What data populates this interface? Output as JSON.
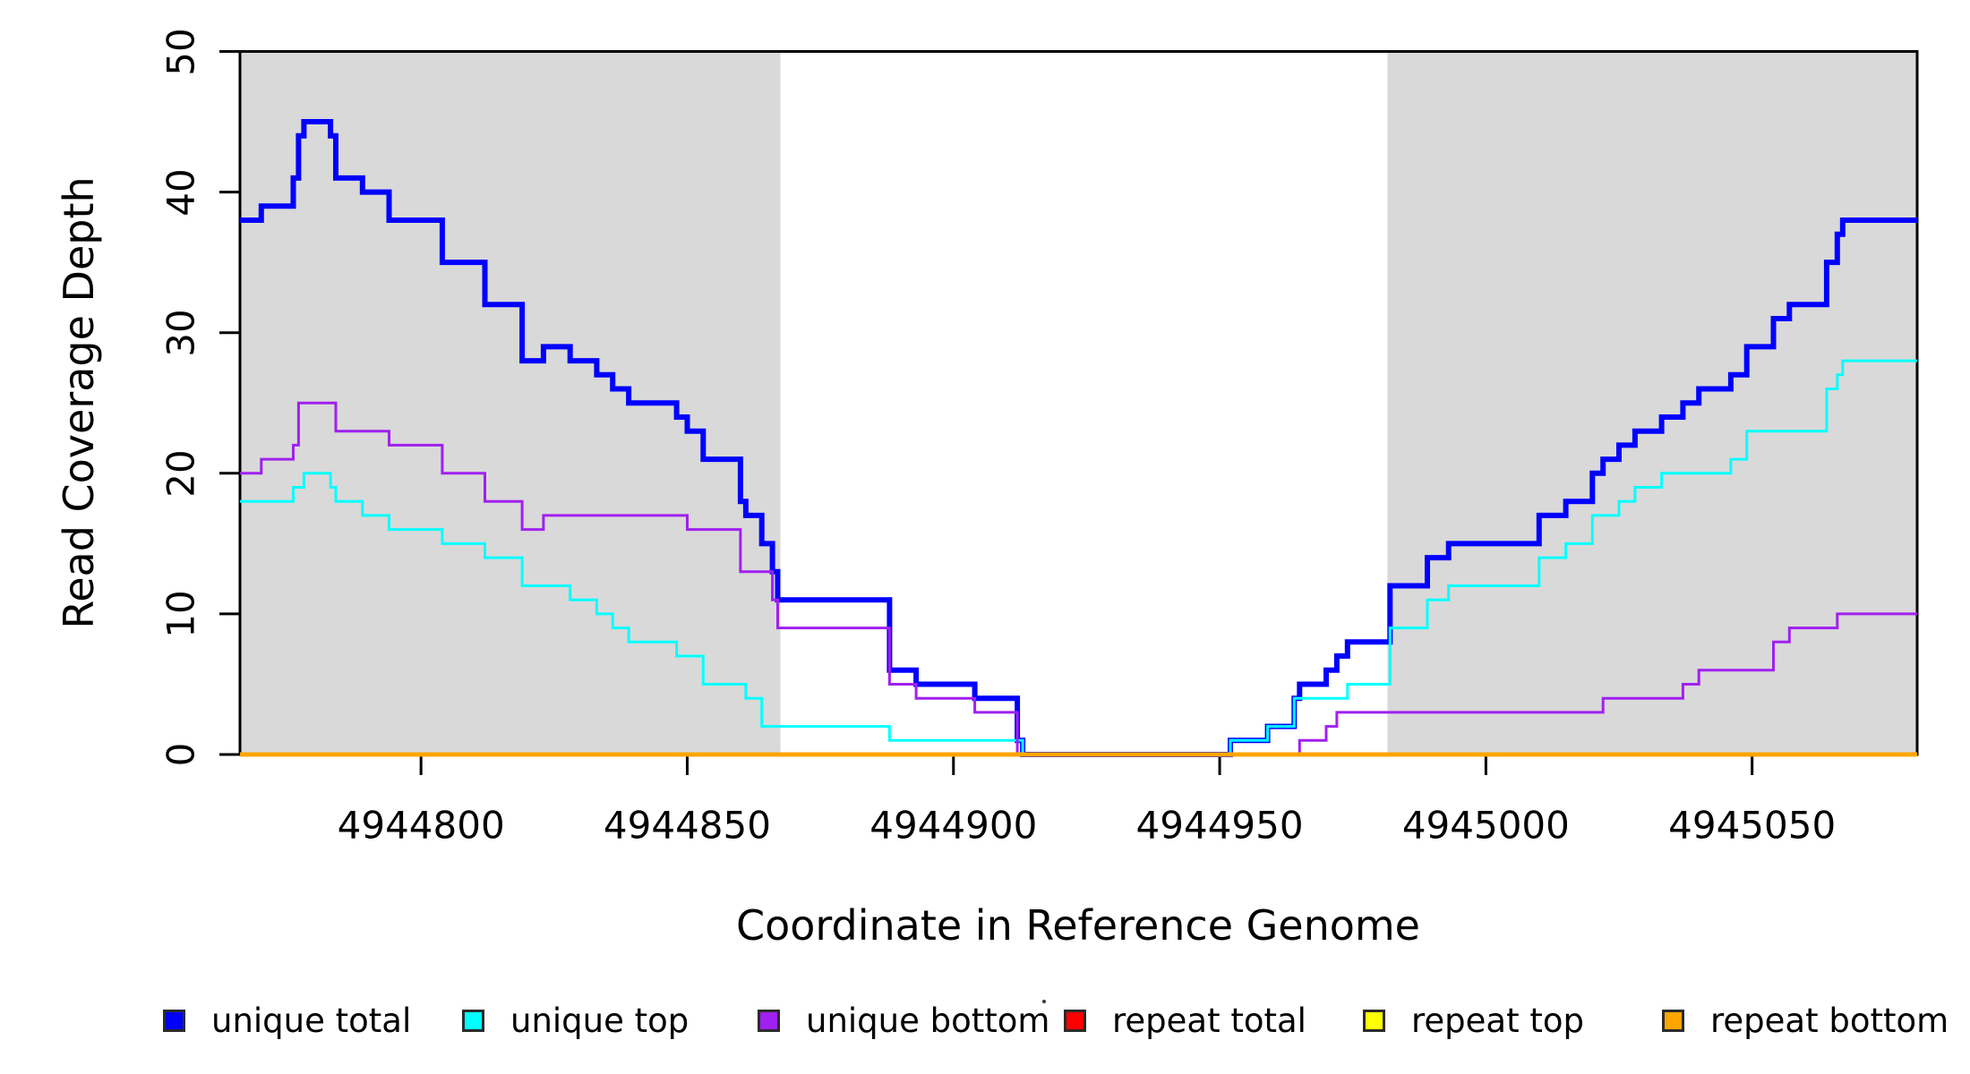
{
  "chart_data": {
    "type": "line",
    "subtype": "step",
    "title": "",
    "xlabel": "Coordinate in Reference Genome",
    "ylabel": "Read Coverage Depth",
    "xlim": [
      4944766,
      4945081
    ],
    "ylim": [
      0,
      50
    ],
    "x_ticks": [
      4944800,
      4944850,
      4944900,
      4944950,
      4945000,
      4945050
    ],
    "y_ticks": [
      0,
      10,
      20,
      30,
      40,
      50
    ],
    "grid": false,
    "background_color": "#ffffff",
    "shaded_regions": [
      {
        "name": "left-gray-region",
        "from": 4944766,
        "to": 4944867.5,
        "color": "#D9D9D9"
      },
      {
        "name": "right-gray-region",
        "from": 4944981.5,
        "to": 4945081,
        "color": "#D9D9D9"
      }
    ],
    "legend_position": "bottom",
    "stray_mark": ".",
    "series": [
      {
        "name": "unique total",
        "color": "#0000FF",
        "line_width": 6,
        "steps": [
          [
            4944766,
            38
          ],
          [
            4944770,
            39
          ],
          [
            4944776,
            41
          ],
          [
            4944777,
            44
          ],
          [
            4944778,
            45
          ],
          [
            4944783,
            44
          ],
          [
            4944784,
            41
          ],
          [
            4944789,
            40
          ],
          [
            4944794,
            38
          ],
          [
            4944804,
            35
          ],
          [
            4944812,
            32
          ],
          [
            4944819,
            28
          ],
          [
            4944823,
            29
          ],
          [
            4944828,
            28
          ],
          [
            4944833,
            27
          ],
          [
            4944836,
            26
          ],
          [
            4944839,
            25
          ],
          [
            4944848,
            24
          ],
          [
            4944850,
            23
          ],
          [
            4944853,
            21
          ],
          [
            4944860,
            18
          ],
          [
            4944861,
            17
          ],
          [
            4944864,
            15
          ],
          [
            4944866,
            13
          ],
          [
            4944867,
            11
          ],
          [
            4944888,
            6
          ],
          [
            4944893,
            5
          ],
          [
            4944904,
            4
          ],
          [
            4944912,
            1
          ],
          [
            4944913,
            0
          ],
          [
            4944952,
            1
          ],
          [
            4944959,
            2
          ],
          [
            4944964,
            4
          ],
          [
            4944965,
            5
          ],
          [
            4944970,
            6
          ],
          [
            4944972,
            7
          ],
          [
            4944974,
            8
          ],
          [
            4944982,
            12
          ],
          [
            4944989,
            14
          ],
          [
            4944993,
            15
          ],
          [
            4945010,
            17
          ],
          [
            4945015,
            18
          ],
          [
            4945020,
            20
          ],
          [
            4945022,
            21
          ],
          [
            4945025,
            22
          ],
          [
            4945028,
            23
          ],
          [
            4945033,
            24
          ],
          [
            4945037,
            25
          ],
          [
            4945040,
            26
          ],
          [
            4945046,
            27
          ],
          [
            4945049,
            29
          ],
          [
            4945054,
            31
          ],
          [
            4945057,
            32
          ],
          [
            4945064,
            35
          ],
          [
            4945066,
            37
          ],
          [
            4945067,
            38
          ]
        ]
      },
      {
        "name": "unique top",
        "color": "#00FFFF",
        "line_width": 3,
        "steps": [
          [
            4944766,
            18
          ],
          [
            4944776,
            19
          ],
          [
            4944778,
            20
          ],
          [
            4944783,
            19
          ],
          [
            4944784,
            18
          ],
          [
            4944789,
            17
          ],
          [
            4944794,
            16
          ],
          [
            4944804,
            15
          ],
          [
            4944812,
            14
          ],
          [
            4944819,
            12
          ],
          [
            4944828,
            11
          ],
          [
            4944833,
            10
          ],
          [
            4944836,
            9
          ],
          [
            4944839,
            8
          ],
          [
            4944848,
            7
          ],
          [
            4944853,
            5
          ],
          [
            4944861,
            4
          ],
          [
            4944864,
            2
          ],
          [
            4944888,
            1
          ],
          [
            4944913,
            0
          ],
          [
            4944952,
            1
          ],
          [
            4944959,
            2
          ],
          [
            4944964,
            4
          ],
          [
            4944974,
            5
          ],
          [
            4944982,
            9
          ],
          [
            4944989,
            11
          ],
          [
            4944993,
            12
          ],
          [
            4945010,
            14
          ],
          [
            4945015,
            15
          ],
          [
            4945020,
            17
          ],
          [
            4945025,
            18
          ],
          [
            4945028,
            19
          ],
          [
            4945033,
            20
          ],
          [
            4945046,
            21
          ],
          [
            4945049,
            23
          ],
          [
            4945064,
            26
          ],
          [
            4945066,
            27
          ],
          [
            4945067,
            28
          ]
        ]
      },
      {
        "name": "unique bottom",
        "color": "#A020F0",
        "line_width": 3,
        "steps": [
          [
            4944766,
            20
          ],
          [
            4944770,
            21
          ],
          [
            4944776,
            22
          ],
          [
            4944777,
            25
          ],
          [
            4944784,
            23
          ],
          [
            4944794,
            22
          ],
          [
            4944804,
            20
          ],
          [
            4944812,
            18
          ],
          [
            4944819,
            16
          ],
          [
            4944823,
            17
          ],
          [
            4944850,
            16
          ],
          [
            4944860,
            13
          ],
          [
            4944866,
            11
          ],
          [
            4944867,
            9
          ],
          [
            4944888,
            5
          ],
          [
            4944893,
            4
          ],
          [
            4944904,
            3
          ],
          [
            4944912,
            0
          ],
          [
            4944965,
            1
          ],
          [
            4944970,
            2
          ],
          [
            4944972,
            3
          ],
          [
            4945022,
            4
          ],
          [
            4945037,
            5
          ],
          [
            4945040,
            6
          ],
          [
            4945054,
            8
          ],
          [
            4945057,
            9
          ],
          [
            4945066,
            10
          ]
        ]
      },
      {
        "name": "repeat total",
        "color": "#FF0000",
        "line_width": 3,
        "steps": [
          [
            4944766,
            0
          ]
        ]
      },
      {
        "name": "repeat top",
        "color": "#FFFF00",
        "line_width": 3,
        "steps": [
          [
            4944766,
            0
          ]
        ]
      },
      {
        "name": "repeat bottom",
        "color": "#FFA500",
        "line_width": 5,
        "steps": [
          [
            4944766,
            0
          ]
        ]
      }
    ]
  }
}
